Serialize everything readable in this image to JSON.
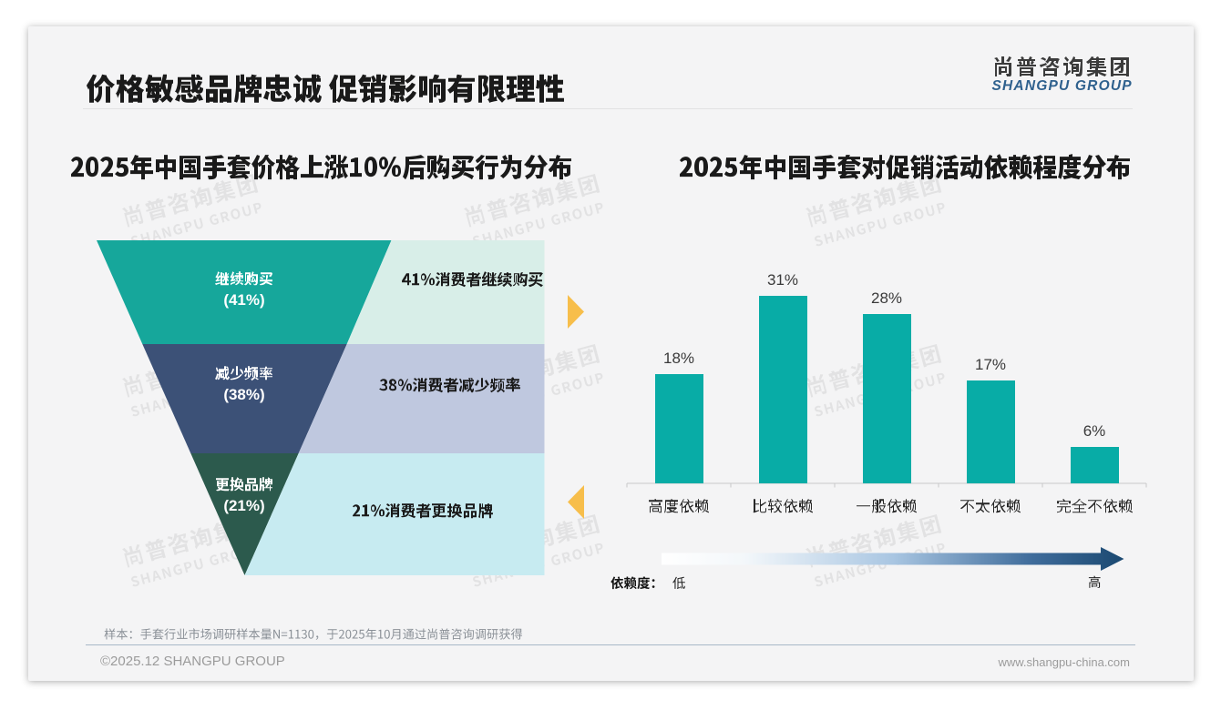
{
  "page": {
    "title": "价格敏感品牌忠诚 促销影响有限理性"
  },
  "logo": {
    "cn": "尚普咨询集团",
    "en": "SHANGPU GROUP"
  },
  "watermark": {
    "line1": "尚普咨询集团",
    "line2": "SHANGPU GROUP"
  },
  "chart_data": [
    {
      "type": "funnel",
      "title": "2025年中国手套价格上涨10%后购买行为分布",
      "segments": [
        {
          "label": "继续购买",
          "value_pct": 41,
          "pct_label": "(41%)",
          "note": "41%消费者继续购买",
          "color": "#16A79B",
          "note_bg": "#D8EEE8"
        },
        {
          "label": "减少频率",
          "value_pct": 38,
          "pct_label": "(38%)",
          "note": "38%消费者减少频率",
          "color": "#3C5177",
          "note_bg": "#BFC8DF"
        },
        {
          "label": "更换品牌",
          "value_pct": 21,
          "pct_label": "(21%)",
          "note": "21%消费者更换品牌",
          "color": "#2C5A4D",
          "note_bg": "#C7EBF1"
        }
      ],
      "arrow_color": "#F7BE4B"
    },
    {
      "type": "bar",
      "title": "2025年中国手套对促销活动依赖程度分布",
      "categories": [
        "高度依赖",
        "比较依赖",
        "一般依赖",
        "不太依赖",
        "完全不依赖"
      ],
      "values": [
        18,
        31,
        28,
        17,
        6
      ],
      "unit": "%",
      "value_labels": [
        "18%",
        "31%",
        "28%",
        "17%",
        "6%"
      ],
      "bar_color": "#08ACA6",
      "ylim": [
        0,
        35
      ],
      "axis_note": {
        "label": "依赖度：",
        "low": "低",
        "high": "高"
      }
    }
  ],
  "footnote": "样本：手套行业市场调研样本量N=1130，于2025年10月通过尚普咨询调研获得",
  "footer": {
    "copyright": "©2025.12 SHANGPU GROUP",
    "website": "www.shangpu-china.com"
  }
}
